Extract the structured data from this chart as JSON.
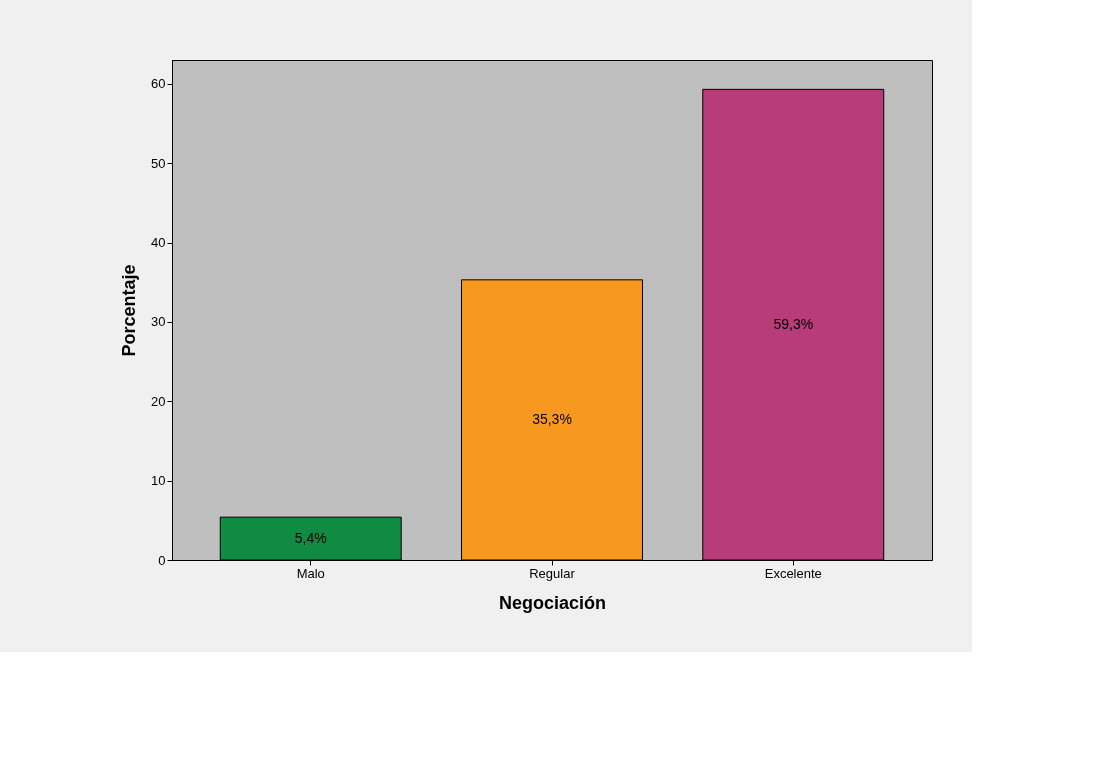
{
  "chart_data": {
    "type": "bar",
    "xlabel": "Negociación",
    "ylabel": "Porcentaje",
    "categories": [
      "Malo",
      "Regular",
      "Excelente"
    ],
    "values": [
      5.4,
      35.3,
      59.3
    ],
    "colors": [
      "#118a44",
      "#f7991f",
      "#b83c7a"
    ],
    "value_labels": [
      "5,4%",
      "35,3%",
      "59,3%"
    ],
    "ylim": [
      0,
      63
    ],
    "yticks": [
      0,
      10,
      20,
      30,
      40,
      50,
      60
    ],
    "grid": false
  }
}
